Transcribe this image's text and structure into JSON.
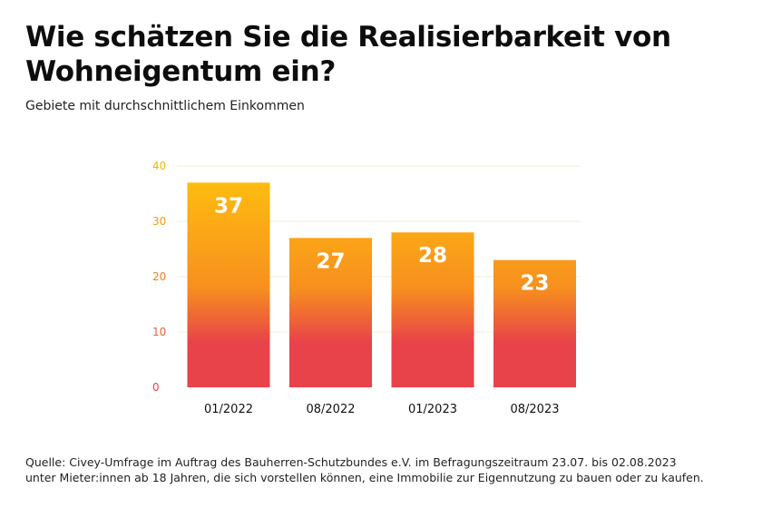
{
  "chart_data": {
    "type": "bar",
    "title_lines": [
      "Wie schätzen Sie die Realisierbarkeit von",
      "Wohneigentum ein?"
    ],
    "subtitle": "Gebiete mit durchschnittlichem Einkommen",
    "categories": [
      "01/2022",
      "08/2022",
      "01/2023",
      "08/2023"
    ],
    "values": [
      37,
      27,
      28,
      23
    ],
    "data_labels": [
      "37",
      "27",
      "28",
      "23"
    ],
    "yticks": [
      0,
      10,
      20,
      30,
      40
    ],
    "ylim": [
      0,
      40
    ],
    "xlabel": "",
    "ylabel": "",
    "grid": true,
    "colors": {
      "gradient_top": "#FFC20E",
      "gradient_mid": "#F7901E",
      "gradient_bottom": "#E8424A",
      "tick_top": "#F2B705",
      "tick_bottom": "#E8424A",
      "grid": "#F1ECD8"
    }
  },
  "source": {
    "line1": "Quelle: Civey-Umfrage im Auftrag des Bauherren-Schutzbundes e.V. im Befragungszeitraum 23.07. bis 02.08.2023",
    "line2": "unter Mieter:innen ab 18 Jahren, die sich vorstellen können, eine Immobilie zur Eigennutzung zu bauen oder zu kaufen."
  }
}
